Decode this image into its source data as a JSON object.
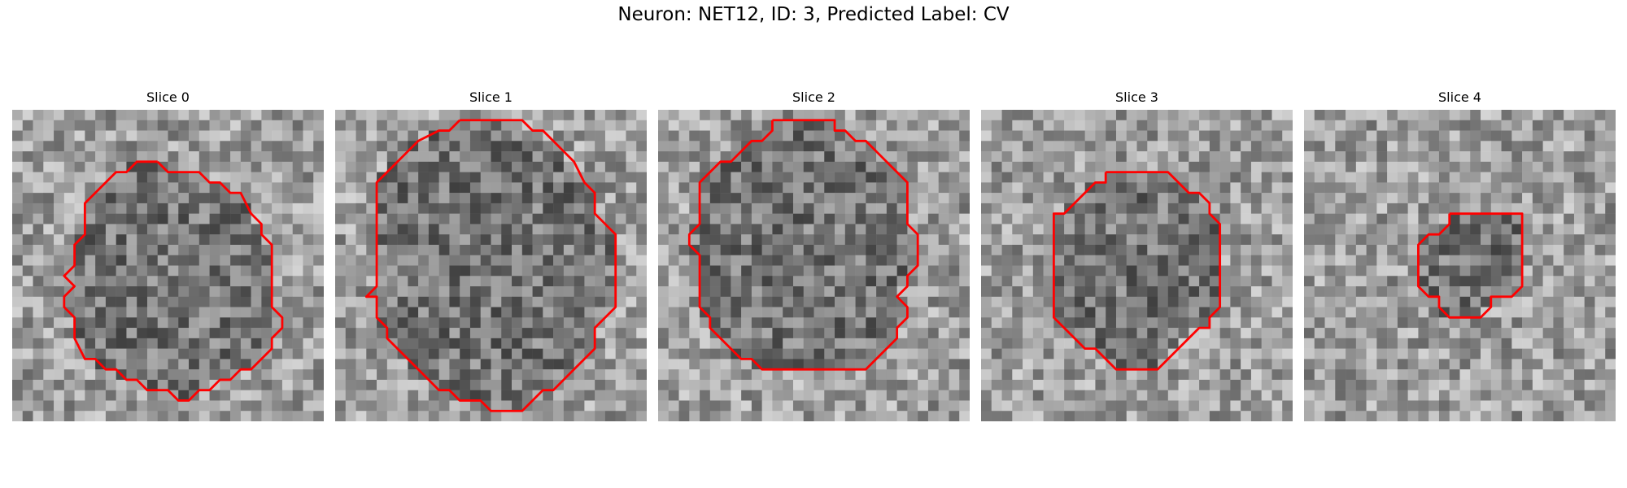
{
  "figure": {
    "title": "Neuron: NET12, ID: 3, Predicted Label: CV"
  },
  "colors": {
    "contour": "#ff0000",
    "background": "#ffffff"
  },
  "grid_cells": 30,
  "slices": [
    {
      "title": "Slice 0",
      "contour": [
        [
          14,
          5
        ],
        [
          15,
          6
        ],
        [
          18,
          6
        ],
        [
          19,
          7
        ],
        [
          20,
          7
        ],
        [
          21,
          8
        ],
        [
          22,
          8
        ],
        [
          23,
          10
        ],
        [
          24,
          11
        ],
        [
          24,
          12
        ],
        [
          25,
          13
        ],
        [
          25,
          19
        ],
        [
          26,
          20
        ],
        [
          26,
          21
        ],
        [
          25,
          22
        ],
        [
          25,
          23
        ],
        [
          24,
          24
        ],
        [
          23,
          25
        ],
        [
          22,
          25
        ],
        [
          21,
          26
        ],
        [
          20,
          26
        ],
        [
          19,
          27
        ],
        [
          18,
          27
        ],
        [
          17,
          28
        ],
        [
          16,
          28
        ],
        [
          15,
          27
        ],
        [
          14,
          27
        ],
        [
          13,
          27
        ],
        [
          12,
          26
        ],
        [
          11,
          26
        ],
        [
          10,
          25
        ],
        [
          9,
          25
        ],
        [
          8,
          24
        ],
        [
          7,
          24
        ],
        [
          6,
          22
        ],
        [
          6,
          20
        ],
        [
          5,
          19
        ],
        [
          5,
          18
        ],
        [
          6,
          17
        ],
        [
          5,
          16
        ],
        [
          6,
          15
        ],
        [
          6,
          13
        ],
        [
          7,
          12
        ],
        [
          7,
          9
        ],
        [
          8,
          8
        ],
        [
          9,
          7
        ],
        [
          10,
          6
        ],
        [
          11,
          6
        ],
        [
          12,
          5
        ],
        [
          13,
          5
        ],
        [
          14,
          5
        ]
      ]
    },
    {
      "title": "Slice 1",
      "contour": [
        [
          12,
          1
        ],
        [
          13,
          1
        ],
        [
          14,
          1
        ],
        [
          15,
          1
        ],
        [
          18,
          1
        ],
        [
          19,
          2
        ],
        [
          20,
          2
        ],
        [
          21,
          3
        ],
        [
          22,
          4
        ],
        [
          23,
          5
        ],
        [
          24,
          7
        ],
        [
          25,
          8
        ],
        [
          25,
          10
        ],
        [
          26,
          11
        ],
        [
          27,
          12
        ],
        [
          27,
          19
        ],
        [
          26,
          20
        ],
        [
          25,
          21
        ],
        [
          25,
          23
        ],
        [
          24,
          24
        ],
        [
          23,
          25
        ],
        [
          22,
          26
        ],
        [
          21,
          27
        ],
        [
          20,
          27
        ],
        [
          19,
          28
        ],
        [
          18,
          29
        ],
        [
          15,
          29
        ],
        [
          14,
          28
        ],
        [
          12,
          28
        ],
        [
          11,
          27
        ],
        [
          10,
          27
        ],
        [
          9,
          26
        ],
        [
          8,
          25
        ],
        [
          7,
          24
        ],
        [
          6,
          23
        ],
        [
          5,
          22
        ],
        [
          5,
          21
        ],
        [
          4,
          20
        ],
        [
          4,
          18
        ],
        [
          3,
          18
        ],
        [
          4,
          17
        ],
        [
          4,
          7
        ],
        [
          5,
          6
        ],
        [
          6,
          5
        ],
        [
          7,
          4
        ],
        [
          8,
          3
        ],
        [
          10,
          2
        ],
        [
          11,
          2
        ],
        [
          12,
          1
        ]
      ]
    },
    {
      "title": "Slice 2",
      "contour": [
        [
          11,
          1
        ],
        [
          14,
          1
        ],
        [
          15,
          1
        ],
        [
          17,
          1
        ],
        [
          17,
          2
        ],
        [
          18,
          2
        ],
        [
          19,
          3
        ],
        [
          20,
          3
        ],
        [
          21,
          4
        ],
        [
          22,
          5
        ],
        [
          23,
          6
        ],
        [
          24,
          7
        ],
        [
          24,
          11
        ],
        [
          25,
          12
        ],
        [
          25,
          15
        ],
        [
          24,
          16
        ],
        [
          24,
          17
        ],
        [
          23,
          18
        ],
        [
          24,
          19
        ],
        [
          24,
          20
        ],
        [
          23,
          21
        ],
        [
          23,
          22
        ],
        [
          22,
          23
        ],
        [
          21,
          24
        ],
        [
          20,
          25
        ],
        [
          18,
          25
        ],
        [
          16,
          25
        ],
        [
          14,
          25
        ],
        [
          13,
          25
        ],
        [
          12,
          25
        ],
        [
          11,
          25
        ],
        [
          10,
          25
        ],
        [
          9,
          24
        ],
        [
          8,
          24
        ],
        [
          7,
          23
        ],
        [
          6,
          22
        ],
        [
          5,
          21
        ],
        [
          5,
          20
        ],
        [
          4,
          19
        ],
        [
          4,
          14
        ],
        [
          3,
          13
        ],
        [
          3,
          12
        ],
        [
          4,
          11
        ],
        [
          4,
          7
        ],
        [
          5,
          6
        ],
        [
          6,
          5
        ],
        [
          7,
          5
        ],
        [
          8,
          4
        ],
        [
          9,
          3
        ],
        [
          10,
          3
        ],
        [
          11,
          2
        ],
        [
          11,
          1
        ]
      ]
    },
    {
      "title": "Slice 3",
      "contour": [
        [
          12,
          6
        ],
        [
          13,
          6
        ],
        [
          18,
          6
        ],
        [
          19,
          7
        ],
        [
          20,
          8
        ],
        [
          21,
          8
        ],
        [
          22,
          9
        ],
        [
          22,
          10
        ],
        [
          23,
          11
        ],
        [
          23,
          12
        ],
        [
          23,
          19
        ],
        [
          22,
          20
        ],
        [
          22,
          21
        ],
        [
          21,
          21
        ],
        [
          20,
          22
        ],
        [
          19,
          23
        ],
        [
          18,
          24
        ],
        [
          17,
          25
        ],
        [
          13,
          25
        ],
        [
          12,
          24
        ],
        [
          11,
          23
        ],
        [
          10,
          23
        ],
        [
          9,
          22
        ],
        [
          8,
          21
        ],
        [
          7,
          20
        ],
        [
          7,
          10
        ],
        [
          8,
          10
        ],
        [
          9,
          9
        ],
        [
          10,
          8
        ],
        [
          11,
          7
        ],
        [
          12,
          7
        ],
        [
          12,
          6
        ]
      ]
    },
    {
      "title": "Slice 4",
      "contour": [
        [
          14,
          10
        ],
        [
          21,
          10
        ],
        [
          21,
          17
        ],
        [
          20,
          18
        ],
        [
          18,
          18
        ],
        [
          18,
          19
        ],
        [
          17,
          20
        ],
        [
          14,
          20
        ],
        [
          13,
          19
        ],
        [
          13,
          18
        ],
        [
          12,
          18
        ],
        [
          11,
          17
        ],
        [
          11,
          13
        ],
        [
          12,
          12
        ],
        [
          13,
          12
        ],
        [
          14,
          11
        ],
        [
          14,
          10
        ]
      ]
    }
  ]
}
